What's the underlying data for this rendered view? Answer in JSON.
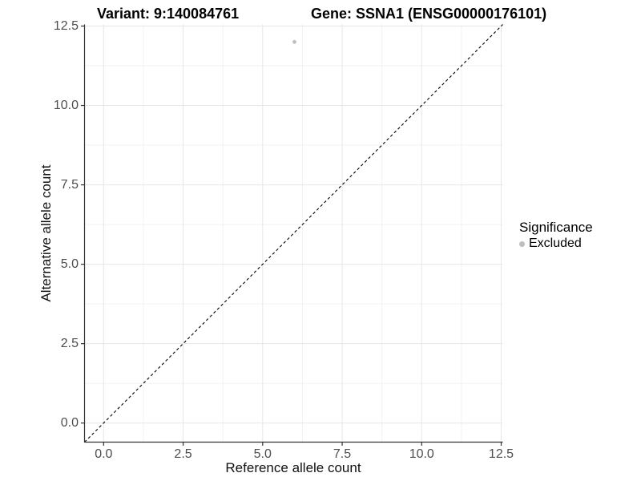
{
  "chart_data": {
    "type": "scatter",
    "title_variant": "Variant: 9:140084761",
    "title_gene": "Gene: SSNA1 (ENSG00000176101)",
    "xlabel": "Reference allele count",
    "ylabel": "Alternative allele count",
    "xlim": [
      -0.6,
      12.55
    ],
    "ylim": [
      -0.6,
      12.55
    ],
    "x_ticks": [
      0,
      2.5,
      5,
      7.5,
      10,
      12.5
    ],
    "y_ticks": [
      0,
      2.5,
      5,
      7.5,
      10,
      12.5
    ],
    "x_tick_labels": [
      "0.0",
      "2.5",
      "5.0",
      "7.5",
      "10.0",
      "12.5"
    ],
    "y_tick_labels": [
      "0.0",
      "2.5",
      "5.0",
      "7.5",
      "10.0",
      "12.5"
    ],
    "minor_ticks": [
      1.25,
      3.75,
      6.25,
      8.75,
      11.25
    ],
    "grid": "major+minor",
    "series": [
      {
        "name": "Excluded",
        "points": [
          {
            "x": 6,
            "y": 12
          }
        ]
      }
    ],
    "abline": {
      "slope": 1,
      "intercept": 0,
      "style": "dashed",
      "color": "#000000"
    },
    "legend": {
      "title": "Significance",
      "position": "right",
      "items": [
        {
          "label": "Excluded",
          "color": "#bebebe"
        }
      ]
    },
    "colors": {
      "point": "#bebebe",
      "grid_major": "#e6e6e6",
      "grid_minor": "#f2f2f2",
      "axis_line": "#333333",
      "tick_mark": "#333333",
      "tick_label": "#4d4d4d",
      "background": "#ffffff"
    }
  }
}
